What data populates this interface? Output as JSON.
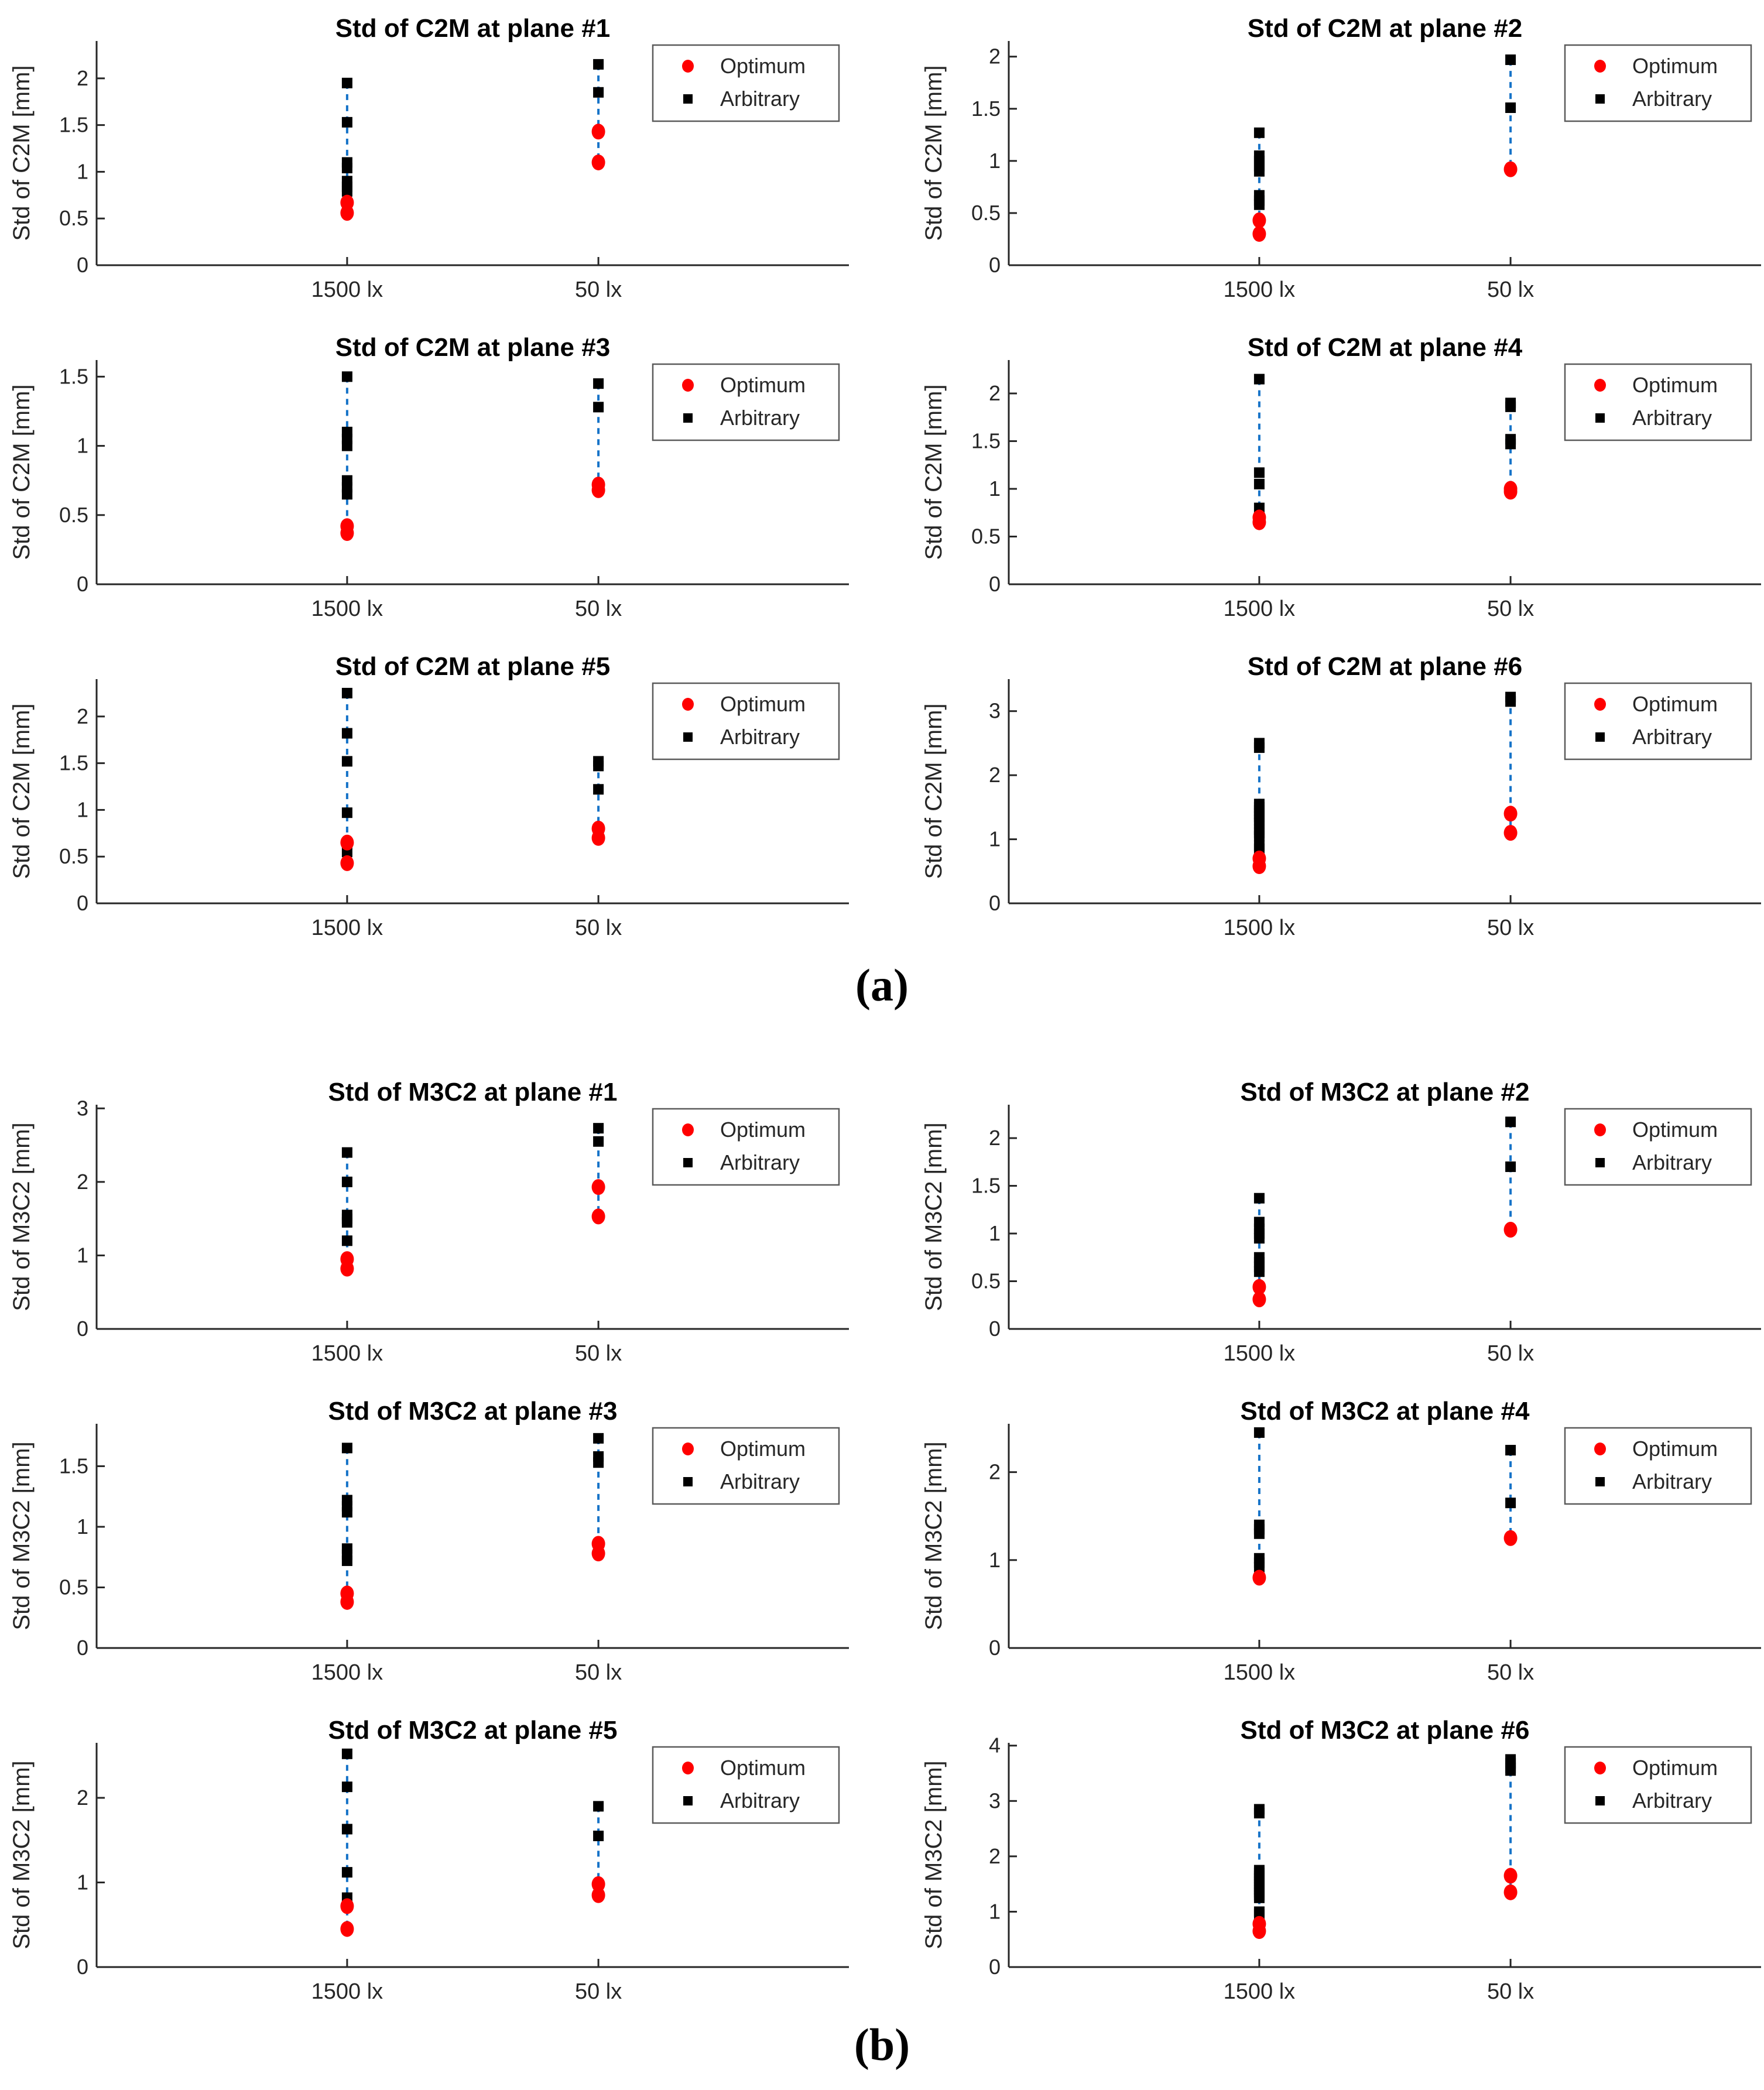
{
  "figure": {
    "panel_a_label": "(a)",
    "panel_b_label": "(b)",
    "legend": {
      "optimum_label": "Optimum",
      "arbitrary_label": "Arbitrary"
    },
    "x_categories": [
      "1500 lx",
      "50 lx"
    ],
    "colors": {
      "optimum": "#ff0000",
      "arbitrary": "#000000",
      "connector": "#1673c8",
      "axis": "#262626",
      "title": "#000000",
      "legend_border": "#5a5a5a",
      "background": "#ffffff"
    }
  },
  "chart_data": [
    {
      "type": "scatter",
      "panel": "a",
      "title": "Std of C2M at plane #1",
      "ylabel": "Std of C2M [mm]",
      "xlabel": "",
      "categories": [
        "1500 lx",
        "50 lx"
      ],
      "yticks": [
        0,
        0.5,
        1,
        1.5,
        2
      ],
      "ylim": [
        0,
        2.4
      ],
      "legend_position": "top-right",
      "grid": false,
      "series": [
        {
          "name": "Arbitrary",
          "values": [
            [
              1.95,
              1.53,
              1.1,
              1.04,
              0.9,
              0.84,
              0.79
            ],
            [
              2.15,
              1.85
            ]
          ]
        },
        {
          "name": "Optimum",
          "values": [
            [
              0.67,
              0.56
            ],
            [
              1.43,
              1.1
            ]
          ]
        }
      ]
    },
    {
      "type": "scatter",
      "panel": "a",
      "title": "Std of C2M at plane #2",
      "ylabel": "Std of C2M [mm]",
      "xlabel": "",
      "categories": [
        "1500 lx",
        "50 lx"
      ],
      "yticks": [
        0,
        0.5,
        1,
        1.5,
        2
      ],
      "ylim": [
        0,
        2.15
      ],
      "legend_position": "top-right",
      "grid": false,
      "series": [
        {
          "name": "Arbitrary",
          "values": [
            [
              1.27,
              1.05,
              1.0,
              0.95,
              0.9,
              0.67,
              0.62,
              0.58
            ],
            [
              1.97,
              1.51
            ]
          ]
        },
        {
          "name": "Optimum",
          "values": [
            [
              0.43,
              0.3
            ],
            [
              0.92
            ]
          ]
        }
      ]
    },
    {
      "type": "scatter",
      "panel": "a",
      "title": "Std of C2M at plane #3",
      "ylabel": "Std of C2M [mm]",
      "xlabel": "",
      "categories": [
        "1500 lx",
        "50 lx"
      ],
      "yticks": [
        0,
        0.5,
        1,
        1.5
      ],
      "ylim": [
        0,
        1.62
      ],
      "legend_position": "top-right",
      "grid": false,
      "series": [
        {
          "name": "Arbitrary",
          "values": [
            [
              1.5,
              1.1,
              1.05,
              1.0,
              0.75,
              0.7,
              0.65
            ],
            [
              1.45,
              1.28
            ]
          ]
        },
        {
          "name": "Optimum",
          "values": [
            [
              0.42,
              0.37
            ],
            [
              0.72,
              0.68
            ]
          ]
        }
      ]
    },
    {
      "type": "scatter",
      "panel": "a",
      "title": "Std of C2M at plane #4",
      "ylabel": "Std of C2M [mm]",
      "xlabel": "",
      "categories": [
        "1500 lx",
        "50 lx"
      ],
      "yticks": [
        0,
        0.5,
        1,
        1.5,
        2
      ],
      "ylim": [
        0,
        2.35
      ],
      "legend_position": "top-right",
      "grid": false,
      "series": [
        {
          "name": "Arbitrary",
          "values": [
            [
              2.15,
              1.17,
              1.05,
              0.8
            ],
            [
              1.9,
              1.86,
              1.52,
              1.47
            ]
          ]
        },
        {
          "name": "Optimum",
          "values": [
            [
              0.7,
              0.65
            ],
            [
              1.0,
              0.97
            ]
          ]
        }
      ]
    },
    {
      "type": "scatter",
      "panel": "a",
      "title": "Std of C2M at plane #5",
      "ylabel": "Std of C2M [mm]",
      "xlabel": "",
      "categories": [
        "1500 lx",
        "50 lx"
      ],
      "yticks": [
        0,
        0.5,
        1,
        1.5,
        2
      ],
      "ylim": [
        0,
        2.4
      ],
      "legend_position": "top-right",
      "grid": false,
      "series": [
        {
          "name": "Arbitrary",
          "values": [
            [
              2.25,
              1.82,
              1.52,
              0.97,
              0.55
            ],
            [
              1.52,
              1.47,
              1.22
            ]
          ]
        },
        {
          "name": "Optimum",
          "values": [
            [
              0.65,
              0.43
            ],
            [
              0.8,
              0.7
            ]
          ]
        }
      ]
    },
    {
      "type": "scatter",
      "panel": "a",
      "title": "Std of C2M at plane #6",
      "ylabel": "Std of C2M [mm]",
      "xlabel": "",
      "categories": [
        "1500 lx",
        "50 lx"
      ],
      "yticks": [
        0,
        1,
        2,
        3
      ],
      "ylim": [
        0,
        3.5
      ],
      "legend_position": "top-right",
      "grid": false,
      "series": [
        {
          "name": "Arbitrary",
          "values": [
            [
              2.5,
              2.43,
              1.55,
              1.5,
              1.45,
              1.4,
              1.35,
              1.3,
              1.25,
              1.15,
              1.1,
              1.05,
              0.9,
              0.85
            ],
            [
              3.22,
              3.15
            ]
          ]
        },
        {
          "name": "Optimum",
          "values": [
            [
              0.7,
              0.58
            ],
            [
              1.4,
              1.1
            ]
          ]
        }
      ]
    },
    {
      "type": "scatter",
      "panel": "b",
      "title": "Std of M3C2 at plane #1",
      "ylabel": "Std of M3C2 [mm]",
      "xlabel": "",
      "categories": [
        "1500 lx",
        "50 lx"
      ],
      "yticks": [
        0,
        1,
        2,
        3
      ],
      "ylim": [
        0,
        3.05
      ],
      "legend_position": "top-right",
      "grid": false,
      "series": [
        {
          "name": "Arbitrary",
          "values": [
            [
              2.4,
              2.0,
              1.55,
              1.5,
              1.45,
              1.2
            ],
            [
              2.73,
              2.55
            ]
          ]
        },
        {
          "name": "Optimum",
          "values": [
            [
              0.95,
              0.82
            ],
            [
              1.93,
              1.53
            ]
          ]
        }
      ]
    },
    {
      "type": "scatter",
      "panel": "b",
      "title": "Std of M3C2 at plane #2",
      "ylabel": "Std of M3C2 [mm]",
      "xlabel": "",
      "categories": [
        "1500 lx",
        "50 lx"
      ],
      "yticks": [
        0,
        0.5,
        1,
        1.5,
        2
      ],
      "ylim": [
        0,
        2.35
      ],
      "legend_position": "top-right",
      "grid": false,
      "series": [
        {
          "name": "Arbitrary",
          "values": [
            [
              1.37,
              1.12,
              1.05,
              1.0,
              0.95,
              0.75,
              0.7,
              0.65,
              0.6
            ],
            [
              2.17,
              1.7
            ]
          ]
        },
        {
          "name": "Optimum",
          "values": [
            [
              0.44,
              0.31
            ],
            [
              1.04
            ]
          ]
        }
      ]
    },
    {
      "type": "scatter",
      "panel": "b",
      "title": "Std of M3C2 at plane #3",
      "ylabel": "Std of M3C2 [mm]",
      "xlabel": "",
      "categories": [
        "1500 lx",
        "50 lx"
      ],
      "yticks": [
        0,
        0.5,
        1,
        1.5
      ],
      "ylim": [
        0,
        1.85
      ],
      "legend_position": "top-right",
      "grid": false,
      "series": [
        {
          "name": "Arbitrary",
          "values": [
            [
              1.65,
              1.22,
              1.17,
              1.12,
              0.82,
              0.77,
              0.72
            ],
            [
              1.73,
              1.58,
              1.53
            ]
          ]
        },
        {
          "name": "Optimum",
          "values": [
            [
              0.45,
              0.38
            ],
            [
              0.86,
              0.78
            ]
          ]
        }
      ]
    },
    {
      "type": "scatter",
      "panel": "b",
      "title": "Std of M3C2 at plane #4",
      "ylabel": "Std of M3C2 [mm]",
      "xlabel": "",
      "categories": [
        "1500 lx",
        "50 lx"
      ],
      "yticks": [
        0,
        1,
        2
      ],
      "ylim": [
        0,
        2.55
      ],
      "legend_position": "top-right",
      "grid": false,
      "series": [
        {
          "name": "Arbitrary",
          "values": [
            [
              2.45,
              1.4,
              1.35,
              1.3,
              1.02,
              0.97,
              0.92
            ],
            [
              2.25,
              1.65
            ]
          ]
        },
        {
          "name": "Optimum",
          "values": [
            [
              0.8
            ],
            [
              1.25
            ]
          ]
        }
      ]
    },
    {
      "type": "scatter",
      "panel": "b",
      "title": "Std of M3C2 at plane #5",
      "ylabel": "Std of M3C2 [mm]",
      "xlabel": "",
      "categories": [
        "1500 lx",
        "50 lx"
      ],
      "yticks": [
        0,
        1,
        2
      ],
      "ylim": [
        0,
        2.65
      ],
      "legend_position": "top-right",
      "grid": false,
      "series": [
        {
          "name": "Arbitrary",
          "values": [
            [
              2.52,
              2.13,
              1.63,
              1.12,
              0.82
            ],
            [
              1.9,
              1.55
            ]
          ]
        },
        {
          "name": "Optimum",
          "values": [
            [
              0.72,
              0.45
            ],
            [
              0.98,
              0.85
            ]
          ]
        }
      ]
    },
    {
      "type": "scatter",
      "panel": "b",
      "title": "Std of M3C2 at plane #6",
      "ylabel": "Std of M3C2 [mm]",
      "xlabel": "",
      "categories": [
        "1500 lx",
        "50 lx"
      ],
      "yticks": [
        0,
        1,
        2,
        3,
        4
      ],
      "ylim": [
        0,
        4.05
      ],
      "legend_position": "top-right",
      "grid": false,
      "series": [
        {
          "name": "Arbitrary",
          "values": [
            [
              2.85,
              2.78,
              1.75,
              1.7,
              1.65,
              1.6,
              1.55,
              1.5,
              1.45,
              1.4,
              1.35,
              1.3,
              1.25,
              1.0,
              0.95
            ],
            [
              3.75,
              3.68,
              3.6,
              3.55
            ]
          ]
        },
        {
          "name": "Optimum",
          "values": [
            [
              0.78,
              0.65
            ],
            [
              1.65,
              1.35
            ]
          ]
        }
      ]
    }
  ]
}
